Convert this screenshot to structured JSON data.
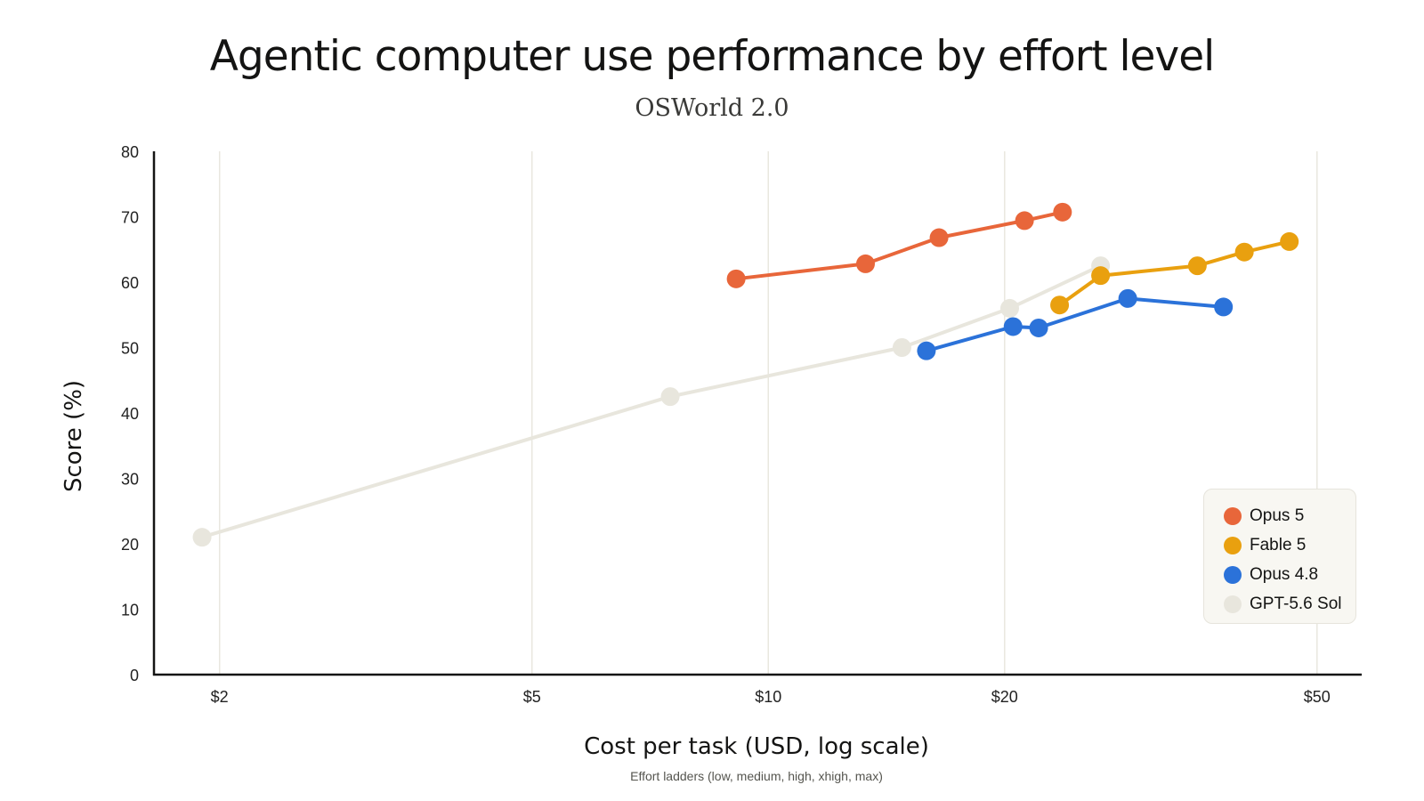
{
  "title": "Agentic computer use performance by effort level",
  "subtitle": "OSWorld 2.0",
  "chart_data": {
    "type": "line",
    "title": "Agentic computer use performance by effort level",
    "subtitle": "OSWorld 2.0",
    "xlabel": "Cost per task (USD, log scale)",
    "xnote": "Effort ladders (low, medium, high, xhigh, max)",
    "ylabel": "Score (%)",
    "xscale": "log",
    "xlim": [
      1.65,
      57
    ],
    "ylim": [
      0,
      80
    ],
    "xticks": [
      2,
      5,
      10,
      20,
      50
    ],
    "xtick_labels": [
      "$2",
      "$5",
      "$10",
      "$20",
      "$50"
    ],
    "yticks": [
      0,
      10,
      20,
      30,
      40,
      50,
      60,
      70,
      80
    ],
    "grid": "vertical",
    "legend_position": "bottom-right",
    "series": [
      {
        "name": "GPT-5.6 Sol",
        "color": "#e8e6dd",
        "x": [
          1.9,
          7.5,
          14.8,
          20.3,
          26.5
        ],
        "y": [
          21,
          42.5,
          50,
          56,
          62.5
        ]
      },
      {
        "name": "Opus 4.8",
        "color": "#2b72d9",
        "x": [
          15.9,
          20.5,
          22.1,
          28.7,
          38.0
        ],
        "y": [
          49.5,
          53.2,
          53.0,
          57.5,
          56.2
        ]
      },
      {
        "name": "Fable 5",
        "color": "#e9a00f",
        "x": [
          23.5,
          26.5,
          35.2,
          40.4,
          46.1
        ],
        "y": [
          56.5,
          61.0,
          62.5,
          64.6,
          66.2
        ]
      },
      {
        "name": "Opus 5",
        "color": "#e8663a",
        "x": [
          9.1,
          13.3,
          16.5,
          21.2,
          23.7
        ],
        "y": [
          60.5,
          62.8,
          66.8,
          69.4,
          70.7
        ]
      }
    ]
  },
  "legend": [
    {
      "label": "Opus 5",
      "color": "#e8663a",
      "icon": "dot"
    },
    {
      "label": "Fable 5",
      "color": "#e9a00f",
      "icon": "dot"
    },
    {
      "label": "Opus 4.8",
      "color": "#2b72d9",
      "icon": "dot"
    },
    {
      "label": "GPT-5.6 Sol",
      "color": "#e8e6dd",
      "icon": "dot"
    }
  ]
}
